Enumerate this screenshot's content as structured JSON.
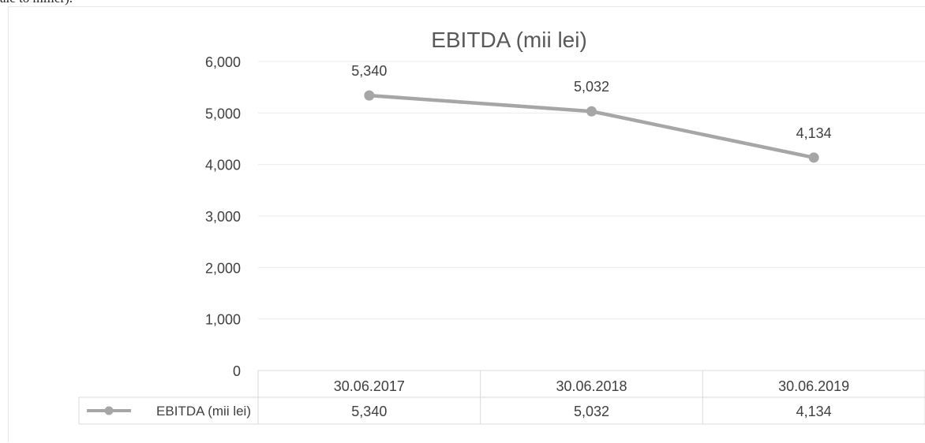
{
  "page_fragment": "ale to miller).",
  "chart_data": {
    "type": "line",
    "title": "EBITDA (mii lei)",
    "xlabel": "",
    "ylabel": "",
    "categories": [
      "30.06.2017",
      "30.06.2018",
      "30.06.2019"
    ],
    "series": [
      {
        "name": "EBITDA (mii lei)",
        "values": [
          5340,
          5032,
          4134
        ],
        "data_labels": [
          "5,340",
          "5,032",
          "4,134"
        ]
      }
    ],
    "ylim": [
      0,
      6000
    ],
    "y_ticks": [
      "0",
      "1,000",
      "2,000",
      "3,000",
      "4,000",
      "5,000",
      "6,000"
    ],
    "grid": true,
    "legend": "data-table-bottom",
    "data_table": {
      "rows": [
        {
          "label": "EBITDA (mii lei)",
          "cells": [
            "5,340",
            "5,032",
            "4,134"
          ]
        }
      ]
    },
    "colors": {
      "series": "#a6a6a6",
      "grid": "#ececec",
      "text": "#404040",
      "title": "#595959"
    }
  }
}
